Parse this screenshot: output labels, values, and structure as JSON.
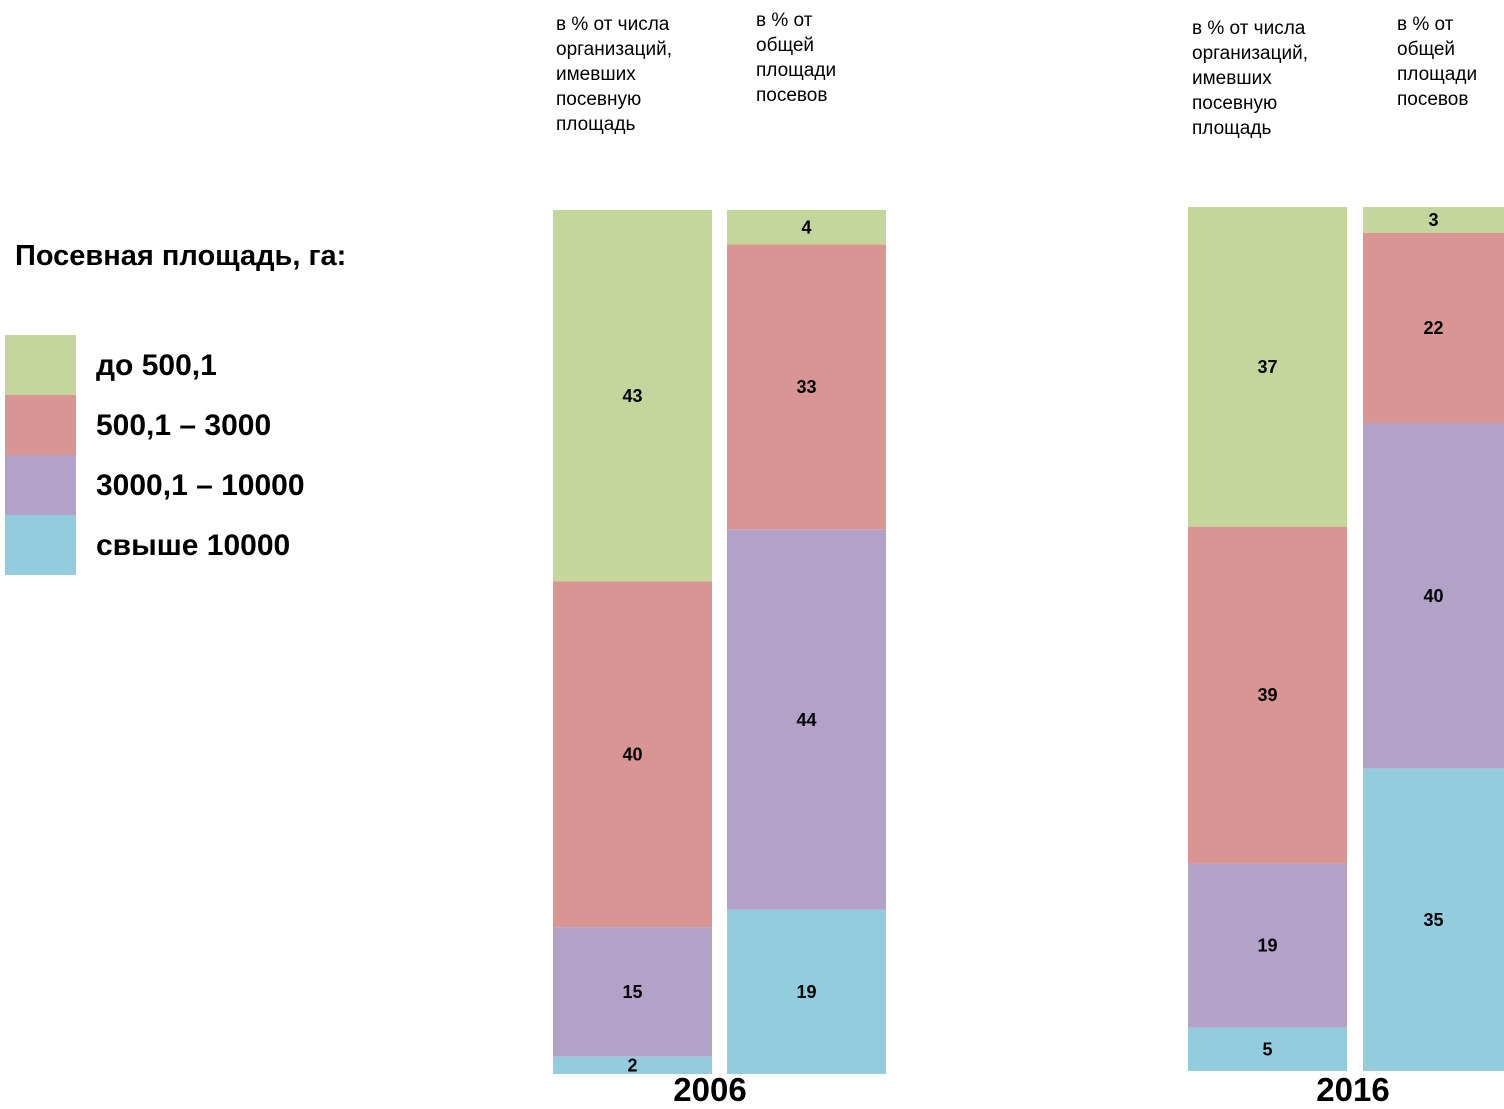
{
  "legend": {
    "title": "Посевная площадь, га:",
    "items": [
      {
        "label": "до 500,1",
        "color": "#c4d69c"
      },
      {
        "label": "500,1 – 3000",
        "color": "#d99593"
      },
      {
        "label": "3000,1 – 10000",
        "color": "#b2a2c8"
      },
      {
        "label": "свыше 10000",
        "color": "#93cddd"
      }
    ]
  },
  "column_headers": {
    "by_count": "в % от числа\nорганизаций,\nимевших\nпосевную\nплощадь",
    "by_area": "в % от\nобщей\nплощади\nпосевов"
  },
  "chart_data": {
    "type": "bar",
    "stacked": true,
    "unit": "%",
    "categories": [
      "до 500,1",
      "500,1 – 3000",
      "3000,1 – 10000",
      "свыше 10000"
    ],
    "groups": [
      {
        "year": "2006",
        "bars": [
          {
            "header": "в % от числа организаций, имевших посевную площадь",
            "values": [
              43,
              40,
              15,
              2
            ]
          },
          {
            "header": "в % от общей площади посевов",
            "values": [
              4,
              33,
              44,
              19
            ]
          }
        ]
      },
      {
        "year": "2016",
        "bars": [
          {
            "header": "в % от числа организаций, имевших посевную площадь",
            "values": [
              37,
              39,
              19,
              5
            ]
          },
          {
            "header": "в % от общей площади посевов",
            "values": [
              3,
              22,
              40,
              35
            ]
          }
        ]
      }
    ]
  }
}
